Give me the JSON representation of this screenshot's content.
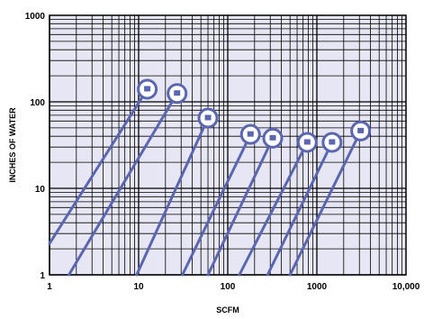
{
  "chart_data": {
    "type": "line",
    "title": "",
    "xlabel": "SCFM",
    "ylabel": "INCHES OF WATER",
    "x_scale": "log",
    "y_scale": "log",
    "xlim": [
      1,
      10000
    ],
    "ylim": [
      1,
      1000
    ],
    "grid": true,
    "legend": "none",
    "x_ticks": [
      "1",
      "10",
      "100",
      "1000",
      "10,000"
    ],
    "y_ticks": [
      "1",
      "10",
      "100",
      "1000"
    ],
    "colors": {
      "plot_bg": "#e6e6f4",
      "grid": "#000000",
      "series": "#5b66b0",
      "marker_fill": "#ffffff"
    },
    "series": [
      {
        "x": [
          1,
          12.5
        ],
        "y": [
          2.3,
          140
        ]
      },
      {
        "x": [
          1.65,
          27
        ],
        "y": [
          1,
          125
        ]
      },
      {
        "x": [
          9.5,
          60
        ],
        "y": [
          1,
          65
        ]
      },
      {
        "x": [
          31,
          180
        ],
        "y": [
          1,
          42
        ]
      },
      {
        "x": [
          60,
          320
        ],
        "y": [
          1,
          38
        ]
      },
      {
        "x": [
          135,
          780
        ],
        "y": [
          1,
          34
        ]
      },
      {
        "x": [
          280,
          1480
        ],
        "y": [
          1,
          34
        ]
      },
      {
        "x": [
          500,
          3100
        ],
        "y": [
          1,
          46
        ]
      }
    ]
  }
}
